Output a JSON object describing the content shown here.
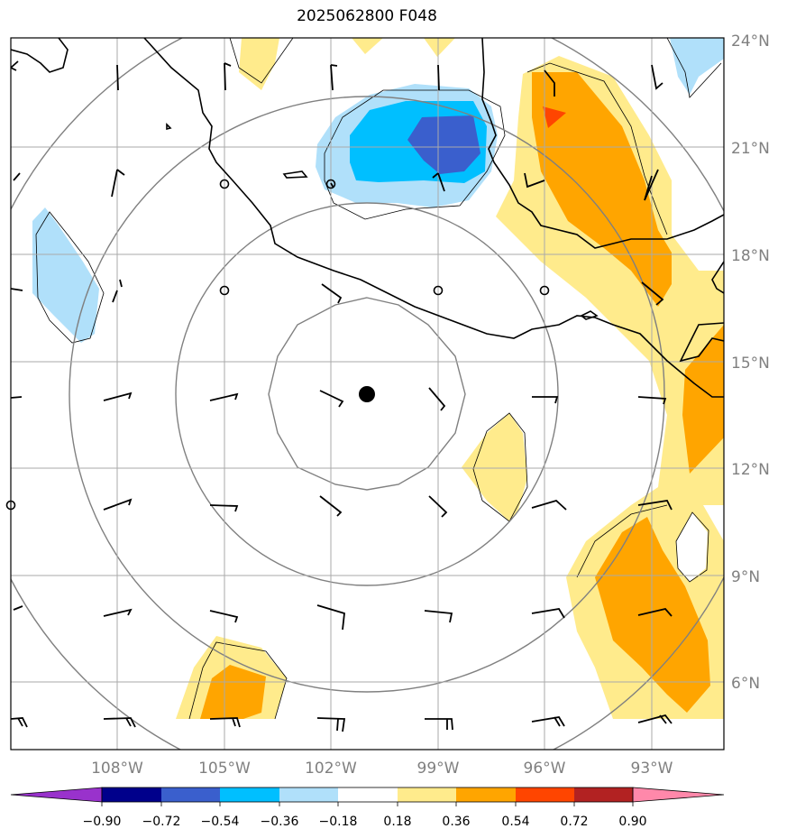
{
  "title": "2025062800 F048",
  "lat_labels": [
    "24°N",
    "21°N",
    "18°N",
    "15°N",
    "12°N",
    "9°N",
    "6°N"
  ],
  "lon_labels": [
    "108°W",
    "105°W",
    "102°W",
    "99°W",
    "96°W",
    "93°W"
  ],
  "colorbar": {
    "ticks": [
      "−0.90",
      "−0.72",
      "−0.54",
      "−0.36",
      "−0.18",
      "0.18",
      "0.36",
      "0.54",
      "0.72",
      "0.90"
    ],
    "colors": [
      "#9932cc",
      "#00008b",
      "#3a5fcd",
      "#00bfff",
      "#b0e0fa",
      "#ffffff",
      "#ffeb8c",
      "#ffa500",
      "#ff4500",
      "#b22222",
      "#ff88aa"
    ]
  },
  "palette": {
    "light_blue": "#b0e0fa",
    "sky_blue": "#00bfff",
    "royal_blue": "#3a5fcd",
    "light_yellow": "#ffeb8c",
    "orange": "#ffa500",
    "red_orange": "#ff4500",
    "grid": "#aaaaaa",
    "range_rings": "#808080",
    "coast": "#000000"
  },
  "center_marker": {
    "lon": -101,
    "lat": 14.1
  }
}
